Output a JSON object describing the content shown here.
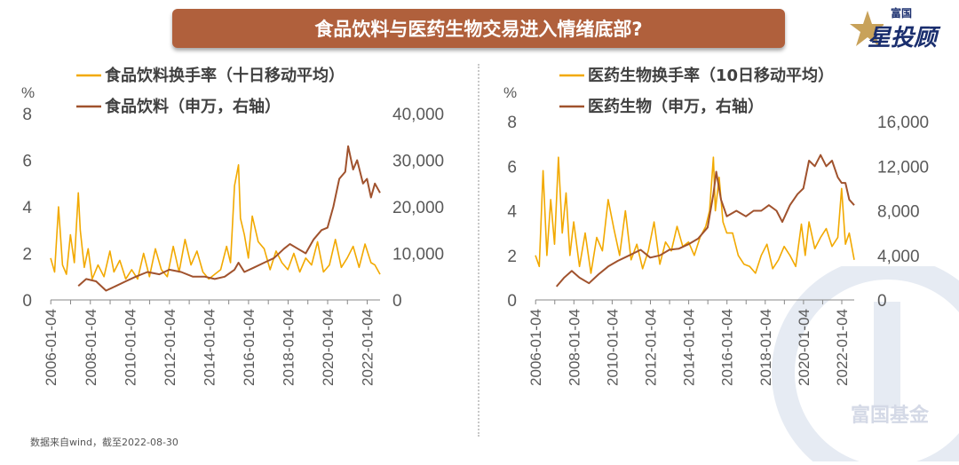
{
  "title": "食品饮料与医药生物交易进入情绪底部?",
  "logo": {
    "small": "富国",
    "big": "星投顾"
  },
  "source": "数据来自wind，截至2022-08-30",
  "watermark": "富国基金",
  "colors": {
    "turnover": "#f2a900",
    "index": "#a0522d",
    "banner": "#b0603c"
  },
  "chart_data": [
    {
      "type": "line",
      "y_unit": "%",
      "ylim": [
        0,
        8
      ],
      "yticks": [
        "0",
        "2",
        "4",
        "6",
        "8"
      ],
      "y2lim": [
        0,
        40000
      ],
      "y2ticks": [
        "0",
        "10,000",
        "20,000",
        "30,000",
        "40,000"
      ],
      "x_range": [
        2006.0,
        2022.66
      ],
      "x_tick_labels": [
        "2006-01-04",
        "2008-01-04",
        "2010-01-04",
        "2012-01-04",
        "2014-01-04",
        "2016-01-04",
        "2018-01-04",
        "2020-01-04",
        "2022-01-04"
      ],
      "series": [
        {
          "name": "食品饮料换手率（十日移动平均）",
          "axis": "left",
          "style": "turnover",
          "x": [
            2006.0,
            2006.2,
            2006.4,
            2006.6,
            2006.8,
            2007.0,
            2007.2,
            2007.4,
            2007.5,
            2007.7,
            2007.9,
            2008.1,
            2008.4,
            2008.7,
            2009.0,
            2009.2,
            2009.5,
            2009.8,
            2010.1,
            2010.4,
            2010.7,
            2011.0,
            2011.3,
            2011.6,
            2011.9,
            2012.2,
            2012.5,
            2012.8,
            2013.1,
            2013.4,
            2013.7,
            2014.0,
            2014.3,
            2014.6,
            2014.9,
            2015.1,
            2015.3,
            2015.5,
            2015.6,
            2015.8,
            2016.0,
            2016.2,
            2016.5,
            2016.8,
            2017.1,
            2017.4,
            2017.7,
            2018.0,
            2018.3,
            2018.6,
            2018.9,
            2019.2,
            2019.5,
            2019.8,
            2020.1,
            2020.4,
            2020.7,
            2021.0,
            2021.3,
            2021.6,
            2021.9,
            2022.2,
            2022.4,
            2022.66
          ],
          "values": [
            1.8,
            1.2,
            4.0,
            1.5,
            1.1,
            2.8,
            1.6,
            4.6,
            3.0,
            1.4,
            2.2,
            0.9,
            1.5,
            1.0,
            2.1,
            1.2,
            1.7,
            0.9,
            1.3,
            0.9,
            2.0,
            1.0,
            2.2,
            1.3,
            1.0,
            2.3,
            1.2,
            2.6,
            1.5,
            2.1,
            1.2,
            0.9,
            1.1,
            1.3,
            2.3,
            1.6,
            4.9,
            5.8,
            3.5,
            2.8,
            1.8,
            3.6,
            2.5,
            2.2,
            1.3,
            2.1,
            1.6,
            1.3,
            2.0,
            1.2,
            1.8,
            1.5,
            2.5,
            1.2,
            1.5,
            2.6,
            1.4,
            1.8,
            2.3,
            1.4,
            2.4,
            1.6,
            1.5,
            1.1
          ]
        },
        {
          "name": "食品饮料（申万，右轴）",
          "axis": "right",
          "style": "index",
          "x": [
            2007.4,
            2007.8,
            2008.3,
            2008.8,
            2009.3,
            2009.8,
            2010.3,
            2010.9,
            2011.5,
            2012.0,
            2012.6,
            2013.2,
            2013.8,
            2014.3,
            2014.8,
            2015.3,
            2015.5,
            2015.8,
            2016.3,
            2016.8,
            2017.3,
            2017.8,
            2018.1,
            2018.5,
            2018.9,
            2019.3,
            2019.7,
            2020.0,
            2020.3,
            2020.6,
            2020.9,
            2021.05,
            2021.3,
            2021.5,
            2021.8,
            2022.0,
            2022.2,
            2022.4,
            2022.66
          ],
          "values": [
            3000,
            4500,
            4000,
            2000,
            3000,
            4000,
            5000,
            6000,
            5500,
            6500,
            6000,
            5000,
            5000,
            4500,
            5000,
            6500,
            8000,
            6000,
            7000,
            8000,
            9000,
            11000,
            12000,
            11000,
            10000,
            13000,
            15000,
            15500,
            20000,
            26000,
            27500,
            33000,
            28000,
            30000,
            25000,
            26000,
            22000,
            25000,
            23000
          ]
        }
      ]
    },
    {
      "type": "line",
      "y_unit": "%",
      "ylim": [
        0,
        8
      ],
      "yticks": [
        "0",
        "2",
        "4",
        "6",
        "8"
      ],
      "y2lim": [
        0,
        16000
      ],
      "y2ticks": [
        "0",
        "4,000",
        "8,000",
        "12,000",
        "16,000"
      ],
      "x_range": [
        2006.0,
        2022.66
      ],
      "x_tick_labels": [
        "2006-01-04",
        "2008-01-04",
        "2010-01-04",
        "2012-01-04",
        "2014-01-04",
        "2016-01-04",
        "2018-01-04",
        "2020-01-04",
        "2022-01-04"
      ],
      "series": [
        {
          "name": "医药生物换手率（10日移动平均）",
          "axis": "left",
          "style": "turnover",
          "x": [
            2006.0,
            2006.2,
            2006.4,
            2006.6,
            2006.8,
            2007.0,
            2007.2,
            2007.4,
            2007.6,
            2007.8,
            2008.0,
            2008.3,
            2008.6,
            2008.9,
            2009.2,
            2009.5,
            2009.8,
            2010.1,
            2010.4,
            2010.7,
            2011.0,
            2011.3,
            2011.6,
            2011.9,
            2012.2,
            2012.5,
            2012.8,
            2013.1,
            2013.4,
            2013.7,
            2014.0,
            2014.3,
            2014.6,
            2014.9,
            2015.1,
            2015.3,
            2015.4,
            2015.6,
            2015.8,
            2016.0,
            2016.3,
            2016.6,
            2016.9,
            2017.2,
            2017.5,
            2017.8,
            2018.1,
            2018.4,
            2018.7,
            2019.0,
            2019.3,
            2019.6,
            2019.9,
            2020.1,
            2020.3,
            2020.6,
            2020.9,
            2021.2,
            2021.5,
            2021.8,
            2022.0,
            2022.2,
            2022.4,
            2022.66
          ],
          "values": [
            2.0,
            1.5,
            5.8,
            2.0,
            4.5,
            2.5,
            6.4,
            3.0,
            4.8,
            2.0,
            3.5,
            1.5,
            3.0,
            1.2,
            2.8,
            2.2,
            4.5,
            3.2,
            2.0,
            4.0,
            1.8,
            2.5,
            1.4,
            2.2,
            3.5,
            1.6,
            2.6,
            2.2,
            3.3,
            2.4,
            2.6,
            2.0,
            2.8,
            3.3,
            4.0,
            6.4,
            4.0,
            5.5,
            3.5,
            3.0,
            3.0,
            2.0,
            1.6,
            1.5,
            1.2,
            2.0,
            2.5,
            1.4,
            1.8,
            2.4,
            2.0,
            1.5,
            3.4,
            2.0,
            3.5,
            2.3,
            2.8,
            3.2,
            2.4,
            2.8,
            5.0,
            2.5,
            3.0,
            1.8
          ]
        },
        {
          "name": "医药生物（申万，右轴）",
          "axis": "right",
          "style": "index",
          "x": [
            2007.1,
            2007.5,
            2007.9,
            2008.3,
            2008.8,
            2009.3,
            2009.8,
            2010.3,
            2010.9,
            2011.5,
            2012.0,
            2012.5,
            2013.0,
            2013.5,
            2014.0,
            2014.5,
            2015.0,
            2015.3,
            2015.45,
            2015.7,
            2016.0,
            2016.5,
            2017.0,
            2017.4,
            2017.8,
            2018.2,
            2018.6,
            2018.9,
            2019.3,
            2019.7,
            2020.0,
            2020.3,
            2020.6,
            2020.9,
            2021.2,
            2021.5,
            2021.8,
            2022.0,
            2022.2,
            2022.4,
            2022.66
          ],
          "values": [
            1200,
            2000,
            2600,
            2000,
            1500,
            2300,
            3000,
            3500,
            4000,
            4500,
            3800,
            4000,
            4500,
            4600,
            5000,
            5500,
            6500,
            9500,
            11500,
            9000,
            7500,
            8000,
            7500,
            8000,
            8000,
            8500,
            8000,
            7000,
            8500,
            9500,
            10000,
            12500,
            12000,
            13000,
            12000,
            12500,
            11000,
            10500,
            10500,
            9000,
            8500
          ]
        }
      ]
    }
  ]
}
